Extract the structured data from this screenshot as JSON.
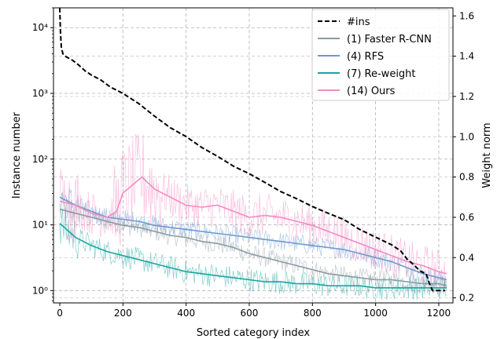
{
  "chart_data": {
    "type": "line",
    "xlabel": "Sorted category index",
    "ylabel_left": "Instance number",
    "ylabel_right": "Weight norm",
    "xlim": [
      -20,
      1245
    ],
    "x_ticks": [
      0,
      200,
      400,
      600,
      800,
      1000,
      1200
    ],
    "x_tick_labels": [
      "0",
      "200",
      "400",
      "600",
      "800",
      "1000",
      "1200"
    ],
    "left_axis": {
      "scale": "log",
      "lim": [
        0.65,
        20000
      ],
      "ticks": [
        1,
        10,
        100,
        1000,
        10000
      ],
      "tick_labels": [
        "10⁰",
        "10¹",
        "10²",
        "10³",
        "10⁴"
      ]
    },
    "right_axis": {
      "scale": "linear",
      "lim": [
        0.175,
        1.64
      ],
      "ticks": [
        0.2,
        0.4,
        0.6,
        0.8,
        1.0,
        1.2,
        1.4,
        1.6
      ],
      "tick_labels": [
        "0.2",
        "0.4",
        "0.6",
        "0.8",
        "1.0",
        "1.2",
        "1.4",
        "1.6"
      ]
    },
    "grid": true,
    "legend_position": "top-right",
    "instances": {
      "name": "#ins",
      "axis": "left",
      "color": "#000000",
      "style": "dashed",
      "x": [
        0,
        2,
        5,
        10,
        20,
        40,
        60,
        80,
        100,
        130,
        160,
        200,
        250,
        300,
        350,
        400,
        450,
        500,
        550,
        600,
        650,
        700,
        750,
        800,
        850,
        900,
        950,
        1000,
        1050,
        1080,
        1100,
        1120,
        1140,
        1160,
        1170,
        1180,
        1200,
        1220
      ],
      "y": [
        20000,
        9000,
        5000,
        4000,
        3600,
        3200,
        2700,
        2200,
        1900,
        1600,
        1250,
        1000,
        700,
        450,
        300,
        220,
        150,
        110,
        78,
        60,
        44,
        32,
        25,
        19,
        15,
        12,
        8.5,
        6.5,
        5,
        4,
        3,
        2.5,
        2,
        1.8,
        1.3,
        1,
        1,
        1
      ]
    },
    "series": [
      {
        "name": "(1) Faster R-CNN",
        "axis": "right",
        "color": "#8c9aa3",
        "x": [
          0,
          50,
          100,
          150,
          200,
          250,
          300,
          350,
          400,
          450,
          500,
          550,
          600,
          650,
          700,
          750,
          800,
          850,
          900,
          950,
          1000,
          1050,
          1100,
          1150,
          1200,
          1225
        ],
        "y": [
          0.64,
          0.62,
          0.6,
          0.58,
          0.56,
          0.55,
          0.53,
          0.51,
          0.5,
          0.48,
          0.47,
          0.45,
          0.42,
          0.4,
          0.38,
          0.36,
          0.34,
          0.32,
          0.31,
          0.3,
          0.29,
          0.29,
          0.28,
          0.27,
          0.27,
          0.26
        ]
      },
      {
        "name": "(4) RFS",
        "axis": "right",
        "color": "#6b9bd1",
        "x": [
          0,
          50,
          100,
          150,
          200,
          250,
          300,
          350,
          400,
          450,
          500,
          550,
          600,
          650,
          700,
          750,
          800,
          850,
          900,
          950,
          1000,
          1050,
          1100,
          1150,
          1200,
          1225
        ],
        "y": [
          0.7,
          0.66,
          0.63,
          0.6,
          0.59,
          0.58,
          0.56,
          0.55,
          0.54,
          0.53,
          0.52,
          0.51,
          0.5,
          0.49,
          0.48,
          0.47,
          0.46,
          0.45,
          0.44,
          0.42,
          0.4,
          0.38,
          0.35,
          0.32,
          0.3,
          0.29
        ]
      },
      {
        "name": "(7) Re-weight",
        "axis": "right",
        "color": "#1aa6a0",
        "x": [
          0,
          50,
          100,
          150,
          200,
          250,
          300,
          350,
          400,
          450,
          500,
          550,
          600,
          650,
          700,
          750,
          800,
          850,
          900,
          950,
          1000,
          1050,
          1100,
          1150,
          1200,
          1225
        ],
        "y": [
          0.57,
          0.5,
          0.46,
          0.43,
          0.41,
          0.39,
          0.37,
          0.35,
          0.33,
          0.32,
          0.31,
          0.3,
          0.29,
          0.28,
          0.28,
          0.27,
          0.27,
          0.26,
          0.26,
          0.26,
          0.25,
          0.25,
          0.25,
          0.25,
          0.25,
          0.25
        ]
      },
      {
        "name": "(14) Ours",
        "axis": "right",
        "color": "#f28cc4",
        "x": [
          0,
          50,
          100,
          150,
          180,
          200,
          230,
          260,
          300,
          350,
          400,
          450,
          500,
          550,
          600,
          650,
          700,
          750,
          800,
          850,
          900,
          950,
          1000,
          1050,
          1100,
          1150,
          1200,
          1225
        ],
        "y": [
          0.68,
          0.66,
          0.62,
          0.6,
          0.63,
          0.72,
          0.76,
          0.8,
          0.74,
          0.7,
          0.66,
          0.65,
          0.66,
          0.63,
          0.6,
          0.61,
          0.6,
          0.58,
          0.56,
          0.53,
          0.5,
          0.47,
          0.44,
          0.41,
          0.38,
          0.36,
          0.33,
          0.32
        ]
      }
    ]
  }
}
